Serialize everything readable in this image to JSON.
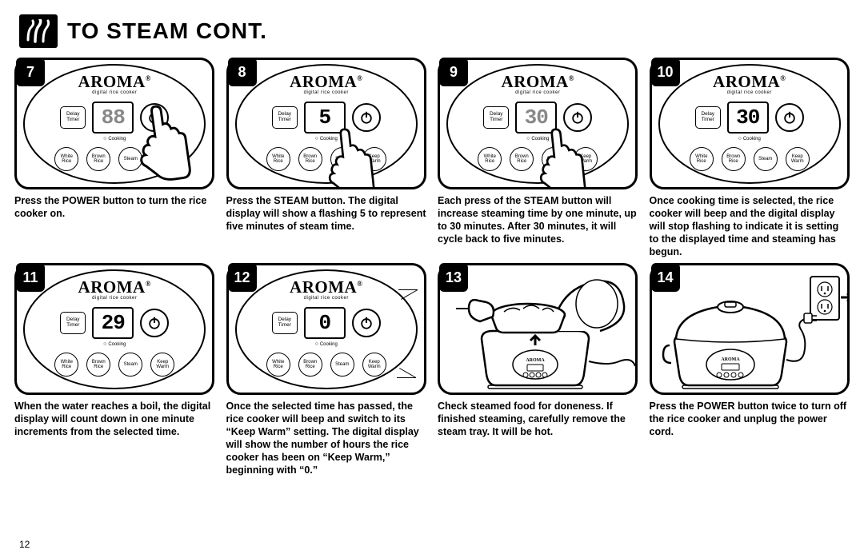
{
  "header": {
    "title": "TO STEAM CONT."
  },
  "page_number": "12",
  "brand": {
    "name": "AROMA",
    "reg": "®",
    "subtitle": "digital rice cooker"
  },
  "panel_labels": {
    "delay": "Delay\nTimer",
    "cooking": "Cooking",
    "white": "White\nRice",
    "brown": "Brown\nRice",
    "steam": "Steam",
    "keep": "Keep\nWarm"
  },
  "steps": [
    {
      "num": "7",
      "display": "88",
      "lcd_active": false,
      "show_hand_power": true,
      "caption": "Press the POWER button to turn the rice cooker on."
    },
    {
      "num": "8",
      "display": "5",
      "lcd_active": true,
      "show_hand_steam": true,
      "caption": "Press the STEAM button. The digital display will show a flashing 5 to represent five minutes of steam time."
    },
    {
      "num": "9",
      "display": "30",
      "lcd_active": false,
      "show_hand_steam": true,
      "caption": "Each press of the STEAM button will increase steaming time by one minute, up to 30 minutes. After 30 minutes, it will cycle back to five minutes."
    },
    {
      "num": "10",
      "display": "30",
      "lcd_active": true,
      "caption": "Once cooking time is selected, the rice cooker will beep and the digital display will stop flashing to indicate it is setting to the displayed time and steaming has begun."
    },
    {
      "num": "11",
      "display": "29",
      "lcd_active": true,
      "caption": "When the water reaches a boil, the digital display will count down in one minute increments from the selected time."
    },
    {
      "num": "12",
      "display": "0",
      "lcd_active": true,
      "show_marks": true,
      "caption": "Once the selected time has passed, the rice cooker will beep and switch to its “Keep Warm” setting. The digital display will show the number of hours the rice cooker has been on “Keep Warm,” beginning with “0.”"
    },
    {
      "num": "13",
      "type": "cooker-open",
      "caption": "Check steamed food for doneness. If finished steaming, carefully remove the steam tray. It will be hot."
    },
    {
      "num": "14",
      "type": "cooker-unplug",
      "caption": "Press the POWER button twice to turn off the rice cooker and unplug the power cord."
    }
  ]
}
